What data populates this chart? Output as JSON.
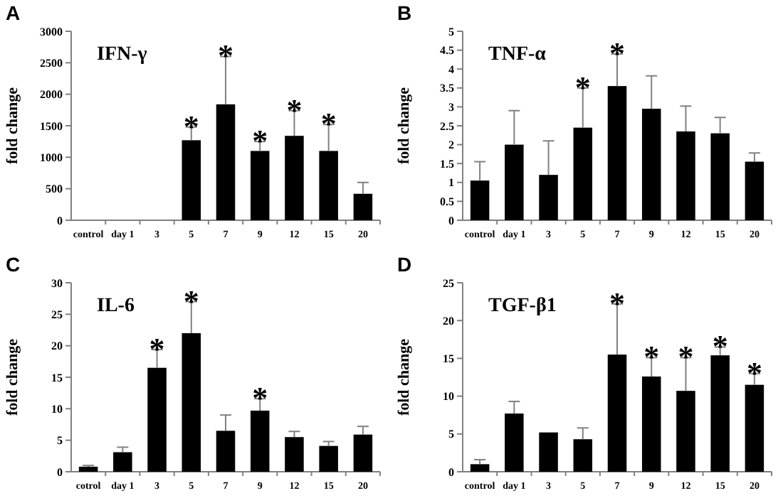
{
  "chart_data": [
    {
      "type": "bar",
      "title": "IFN-γ",
      "ylabel": "fold change",
      "categories": [
        "control",
        "day 1",
        "3",
        "5",
        "7",
        "9",
        "12",
        "15",
        "20"
      ],
      "series": [
        {
          "color": "#000000",
          "values": [
            0,
            0,
            0,
            1270,
            1840,
            1100,
            1340,
            1100,
            420
          ],
          "errors": [
            null,
            null,
            null,
            [
              1270,
              1480
            ],
            [
              1840,
              2600
            ],
            [
              1100,
              1250
            ],
            [
              1340,
              1740
            ],
            [
              1100,
              1520
            ],
            [
              420,
              600
            ]
          ]
        }
      ],
      "ylim": [
        0,
        3000
      ],
      "yticks": [
        0,
        500,
        1000,
        1500,
        2000,
        2500,
        3000
      ],
      "annotations": [
        "A",
        {
          "text": "*",
          "x": "5",
          "y": 1480
        },
        {
          "text": "*",
          "x": "7",
          "y": 2600
        },
        {
          "text": "*",
          "x": "9",
          "y": 1250
        },
        {
          "text": "*",
          "x": "12",
          "y": 1740
        },
        {
          "text": "*",
          "x": "15",
          "y": 1520
        }
      ]
    },
    {
      "type": "bar",
      "title": "TNF-α",
      "ylabel": "fold change",
      "categories": [
        "control",
        "day 1",
        "3",
        "5",
        "7",
        "9",
        "12",
        "15",
        "20"
      ],
      "series": [
        {
          "color": "#000000",
          "values": [
            1.05,
            2,
            1.2,
            2.45,
            3.55,
            2.95,
            2.35,
            2.3,
            1.55
          ],
          "errors": [
            [
              1.05,
              1.55
            ],
            [
              2,
              2.9
            ],
            [
              1.2,
              2.1
            ],
            [
              2.45,
              3.5
            ],
            [
              3.55,
              4.4
            ],
            [
              2.95,
              3.82
            ],
            [
              2.35,
              3.02
            ],
            [
              2.3,
              2.72
            ],
            [
              1.55,
              1.78
            ]
          ]
        }
      ],
      "ylim": [
        0,
        5
      ],
      "yticks": [
        0,
        0.5,
        1,
        1.5,
        2,
        2.5,
        3,
        3.5,
        4,
        4.5,
        5
      ],
      "annotations": [
        "B",
        {
          "text": "*",
          "x": "5",
          "y": 3.5
        },
        {
          "text": "*",
          "x": "7",
          "y": 4.4
        }
      ]
    },
    {
      "type": "bar",
      "title": "IL-6",
      "ylabel": "fold change",
      "categories": [
        "cotrol",
        "day 1",
        "3",
        "5",
        "7",
        "9",
        "12",
        "15",
        "20"
      ],
      "series": [
        {
          "color": "#000000",
          "values": [
            0.8,
            3.1,
            16.5,
            22,
            6.5,
            9.7,
            5.5,
            4.1,
            5.9
          ],
          "errors": [
            [
              0.8,
              1
            ],
            [
              3.1,
              3.9
            ],
            [
              16.5,
              19.4
            ],
            [
              22,
              27
            ],
            [
              6.5,
              9
            ],
            [
              9.7,
              11.6
            ],
            [
              5.5,
              6.4
            ],
            [
              4.1,
              4.8
            ],
            [
              5.9,
              7.2
            ]
          ]
        }
      ],
      "ylim": [
        0,
        30
      ],
      "yticks": [
        0,
        5,
        10,
        15,
        20,
        25,
        30
      ],
      "annotations": [
        "C",
        {
          "text": "*",
          "x": "3",
          "y": 19.4
        },
        {
          "text": "*",
          "x": "5",
          "y": 27
        },
        {
          "text": "*",
          "x": "9",
          "y": 11.6
        }
      ]
    },
    {
      "type": "bar",
      "title": "TGF-β1",
      "ylabel": "fold change",
      "categories": [
        "control",
        "day 1",
        "3",
        "5",
        "7",
        "9",
        "12",
        "15",
        "20"
      ],
      "series": [
        {
          "color": "#000000",
          "values": [
            1,
            7.7,
            5.2,
            4.3,
            15.5,
            12.6,
            10.7,
            15.4,
            11.5
          ],
          "errors": [
            [
              1,
              1.6
            ],
            [
              7.7,
              9.3
            ],
            null,
            [
              4.3,
              5.8
            ],
            [
              15.5,
              22.2
            ],
            [
              12.6,
              15.1
            ],
            [
              10.7,
              15.1
            ],
            [
              15.4,
              16.5
            ],
            [
              11.5,
              13
            ]
          ]
        }
      ],
      "ylim": [
        0,
        25
      ],
      "yticks": [
        0,
        5,
        10,
        15,
        20,
        25
      ],
      "annotations": [
        "D",
        {
          "text": "*",
          "x": "7",
          "y": 22.2
        },
        {
          "text": "*",
          "x": "9",
          "y": 15.1
        },
        {
          "text": "*",
          "x": "12",
          "y": 15.1
        },
        {
          "text": "*",
          "x": "15",
          "y": 16.5
        },
        {
          "text": "*",
          "x": "20",
          "y": 13
        }
      ]
    }
  ]
}
